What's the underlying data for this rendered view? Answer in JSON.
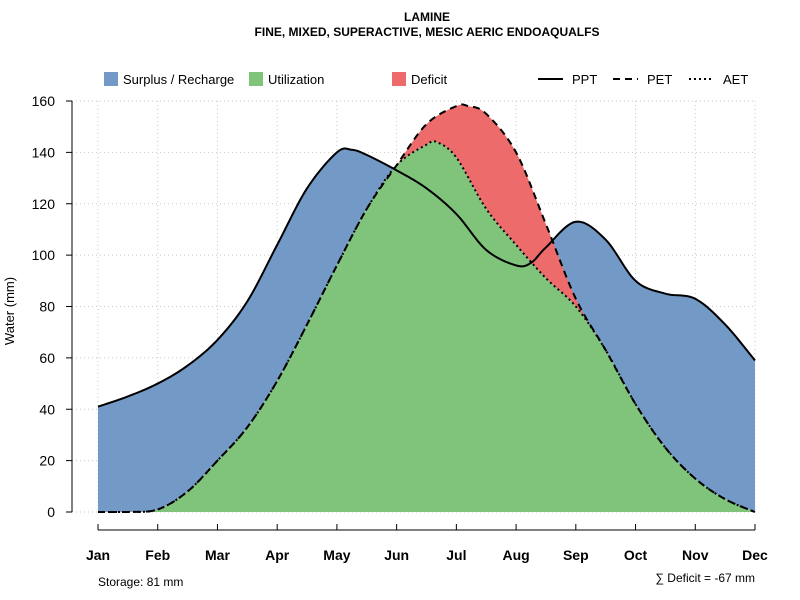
{
  "chart_data": {
    "type": "area",
    "title": "LAMINE",
    "subtitle": "FINE, MIXED, SUPERACTIVE, MESIC AERIC ENDOAQUALFS",
    "xlabel": "",
    "ylabel": "Water (mm)",
    "ylim": [
      0,
      160
    ],
    "yticks": [
      0,
      20,
      40,
      60,
      80,
      100,
      120,
      140,
      160
    ],
    "categories": [
      "Jan",
      "Feb",
      "Mar",
      "Apr",
      "May",
      "Jun",
      "Jul",
      "Aug",
      "Sep",
      "Oct",
      "Nov",
      "Dec"
    ],
    "grid": true,
    "legend": {
      "placement": "top",
      "fills": [
        {
          "name": "Surplus / Recharge",
          "color": "#7399C6"
        },
        {
          "name": "Utilization",
          "color": "#80C47C"
        },
        {
          "name": "Deficit",
          "color": "#ED6B6B"
        }
      ],
      "lines": [
        {
          "name": "PPT",
          "style": "solid"
        },
        {
          "name": "PET",
          "style": "dashed"
        },
        {
          "name": "AET",
          "style": "dotted"
        }
      ]
    },
    "series": [
      {
        "name": "PPT",
        "x": [
          1,
          1.5,
          2,
          2.5,
          3,
          3.5,
          4,
          4.5,
          5,
          5.25,
          5.5,
          6,
          6.5,
          7,
          7.5,
          8,
          8.25,
          8.5,
          9,
          9.5,
          10,
          10.5,
          11,
          11.5,
          12
        ],
        "values": [
          41,
          45,
          50,
          57,
          67,
          82,
          104,
          126,
          140,
          141,
          139,
          133,
          126,
          116,
          102,
          96,
          97,
          103,
          113,
          106,
          90,
          85,
          83,
          73,
          59
        ]
      },
      {
        "name": "PET",
        "x": [
          1,
          1.5,
          2,
          2.5,
          3,
          3.5,
          4,
          4.5,
          5,
          5.5,
          6,
          6.5,
          7,
          7.2,
          7.5,
          8,
          8.5,
          9,
          9.5,
          10,
          10.5,
          11,
          11.5,
          12
        ],
        "values": [
          0,
          0,
          1,
          8,
          20,
          33,
          51,
          73,
          96,
          118,
          135,
          151,
          158,
          158,
          155,
          140,
          112,
          83,
          63,
          42,
          25,
          13,
          5,
          0
        ]
      },
      {
        "name": "AET",
        "x": [
          1,
          1.5,
          2,
          2.5,
          3,
          3.5,
          4,
          4.5,
          5,
          5.5,
          6,
          6.5,
          6.67,
          7,
          7.5,
          8,
          8.5,
          9,
          9.5,
          10,
          10.5,
          11,
          11.5,
          12
        ],
        "values": [
          0,
          0,
          1,
          8,
          20,
          33,
          51,
          73,
          96,
          118,
          135,
          143,
          144,
          138,
          118,
          104,
          91,
          80,
          63,
          42,
          25,
          13,
          5,
          0
        ]
      }
    ]
  },
  "storage_label": "Storage: 81 mm",
  "deficit_label": "∑ Deficit = -67 mm"
}
